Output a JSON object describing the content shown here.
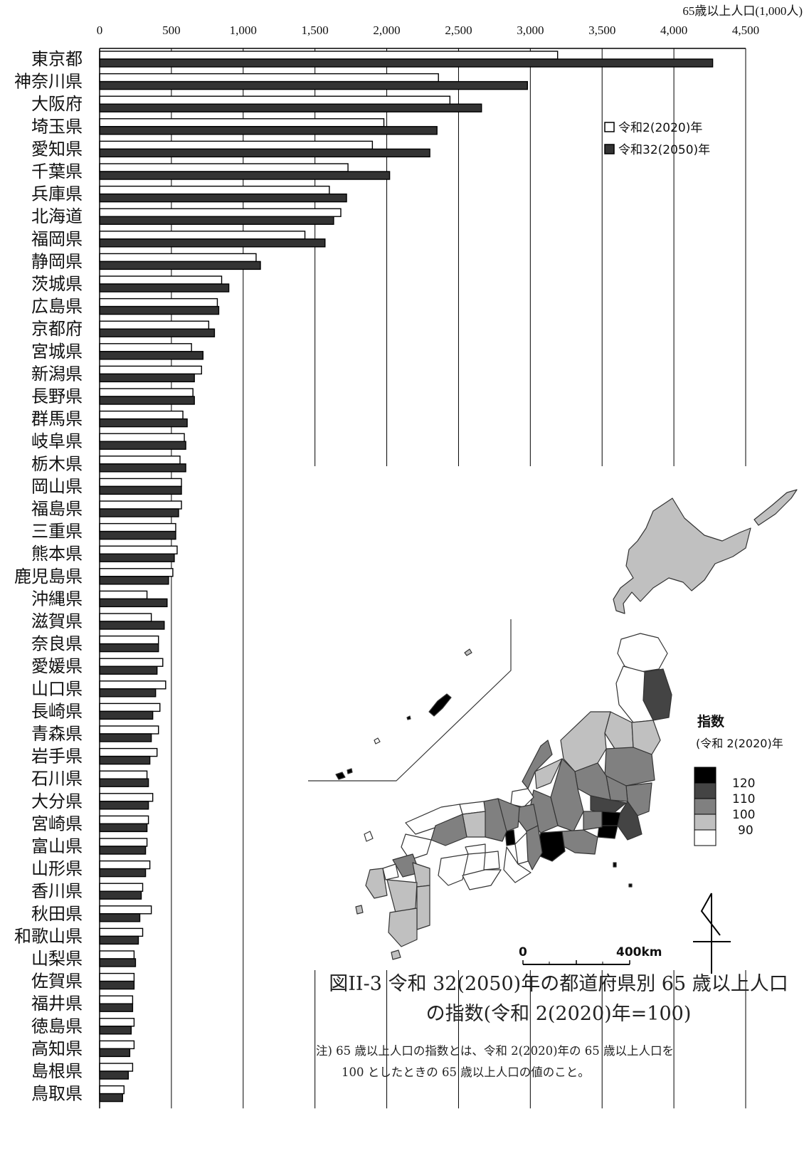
{
  "chart_data": {
    "type": "bar",
    "orientation": "horizontal",
    "axis_title": "65歳以上人口(1,000人)",
    "xlim": [
      0,
      4500
    ],
    "xticks": [
      "0",
      "500",
      "1,000",
      "1,500",
      "2,000",
      "2,500",
      "3,000",
      "3,500",
      "4,000",
      "4,500"
    ],
    "categories": [
      "東京都",
      "神奈川県",
      "大阪府",
      "埼玉県",
      "愛知県",
      "千葉県",
      "兵庫県",
      "北海道",
      "福岡県",
      "静岡県",
      "茨城県",
      "広島県",
      "京都府",
      "宮城県",
      "新潟県",
      "長野県",
      "群馬県",
      "岐阜県",
      "栃木県",
      "岡山県",
      "福島県",
      "三重県",
      "熊本県",
      "鹿児島県",
      "沖縄県",
      "滋賀県",
      "奈良県",
      "愛媛県",
      "山口県",
      "長崎県",
      "青森県",
      "岩手県",
      "石川県",
      "大分県",
      "宮崎県",
      "富山県",
      "山形県",
      "香川県",
      "秋田県",
      "和歌山県",
      "山梨県",
      "佐賀県",
      "福井県",
      "徳島県",
      "高知県",
      "島根県",
      "鳥取県"
    ],
    "series": [
      {
        "name": "令和2(2020)年",
        "color": "#ffffff",
        "values": [
          3190,
          2360,
          2440,
          1980,
          1900,
          1730,
          1600,
          1680,
          1430,
          1090,
          850,
          820,
          760,
          640,
          710,
          650,
          580,
          590,
          560,
          570,
          570,
          530,
          540,
          510,
          330,
          360,
          410,
          440,
          460,
          420,
          410,
          400,
          330,
          370,
          340,
          330,
          350,
          300,
          360,
          300,
          240,
          240,
          230,
          240,
          240,
          230,
          170
        ]
      },
      {
        "name": "令和32(2050)年",
        "color": "#333333",
        "values": [
          4270,
          2980,
          2660,
          2350,
          2300,
          2020,
          1720,
          1630,
          1570,
          1120,
          900,
          830,
          800,
          720,
          660,
          660,
          610,
          600,
          600,
          570,
          550,
          530,
          520,
          480,
          470,
          450,
          410,
          400,
          390,
          370,
          360,
          350,
          340,
          340,
          330,
          320,
          320,
          290,
          280,
          270,
          250,
          240,
          230,
          220,
          210,
          200,
          160
        ]
      }
    ],
    "legend": {
      "position": "top-right"
    },
    "grid": true
  },
  "map": {
    "legend_title": "指数",
    "legend_subtitle": "(令和 2(2020)年",
    "legend_levels": [
      "120",
      "110",
      "100",
      "90"
    ],
    "legend_colors": [
      "#000000",
      "#444444",
      "#808080",
      "#c0c0c0",
      "#ffffff"
    ],
    "scale_zero": "0",
    "scale_end": "400km"
  },
  "caption": {
    "line1": "図II-3 令和 32(2050)年の都道府県別 65 歳以上人口",
    "line2": "の指数(令和 2(2020)年=100)"
  },
  "note": {
    "line1": "注) 65 歳以上人口の指数とは、令和 2(2020)年の 65 歳以上人口を",
    "line2": "100 としたときの 65 歳以上人口の値のこと。"
  }
}
